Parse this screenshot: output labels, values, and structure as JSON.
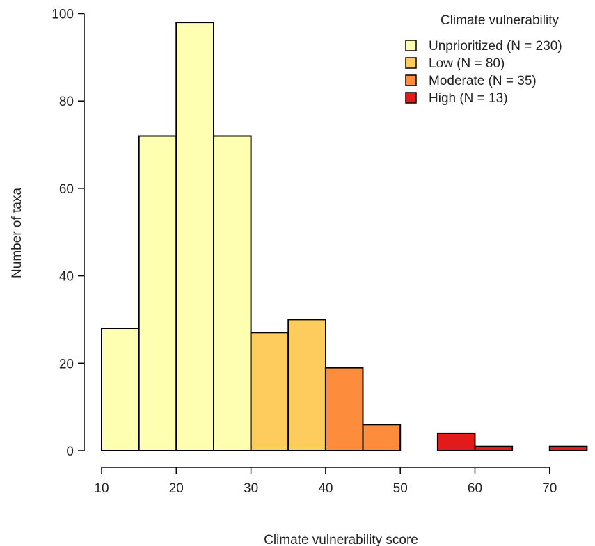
{
  "chart_data": {
    "type": "bar",
    "subtype": "histogram",
    "xlabel": "Climate vulnerability score",
    "ylabel": "Number of taxa",
    "xlim": [
      10,
      75
    ],
    "ylim": [
      0,
      100
    ],
    "x_ticks": [
      10,
      20,
      30,
      40,
      50,
      60,
      70
    ],
    "y_ticks": [
      0,
      20,
      40,
      60,
      80,
      100
    ],
    "grid": false,
    "legend": {
      "title": "Climate vulnerability",
      "position": "top-right",
      "entries": [
        {
          "label": "Unprioritized (N = 230)",
          "color": "#FFFFB2"
        },
        {
          "label": "Low (N = 80)",
          "color": "#FECC5C"
        },
        {
          "label": "Moderate (N = 35)",
          "color": "#FD8D3C"
        },
        {
          "label": "High (N = 13)",
          "color": "#E31A1C"
        }
      ]
    },
    "bins": [
      {
        "x0": 10,
        "x1": 15,
        "count": 28,
        "category": 0
      },
      {
        "x0": 15,
        "x1": 20,
        "count": 72,
        "category": 0
      },
      {
        "x0": 20,
        "x1": 25,
        "count": 98,
        "category": 0
      },
      {
        "x0": 25,
        "x1": 30,
        "count": 72,
        "category": 0
      },
      {
        "x0": 30,
        "x1": 35,
        "count": 27,
        "category": 1
      },
      {
        "x0": 35,
        "x1": 40,
        "count": 30,
        "category": 1
      },
      {
        "x0": 40,
        "x1": 45,
        "count": 19,
        "category": 2
      },
      {
        "x0": 45,
        "x1": 50,
        "count": 6,
        "category": 2
      },
      {
        "x0": 50,
        "x1": 55,
        "count": 0,
        "category": 2
      },
      {
        "x0": 55,
        "x1": 60,
        "count": 4,
        "category": 3
      },
      {
        "x0": 60,
        "x1": 65,
        "count": 1,
        "category": 3
      },
      {
        "x0": 65,
        "x1": 70,
        "count": 0,
        "category": 3
      },
      {
        "x0": 70,
        "x1": 75,
        "count": 1,
        "category": 3
      }
    ]
  }
}
